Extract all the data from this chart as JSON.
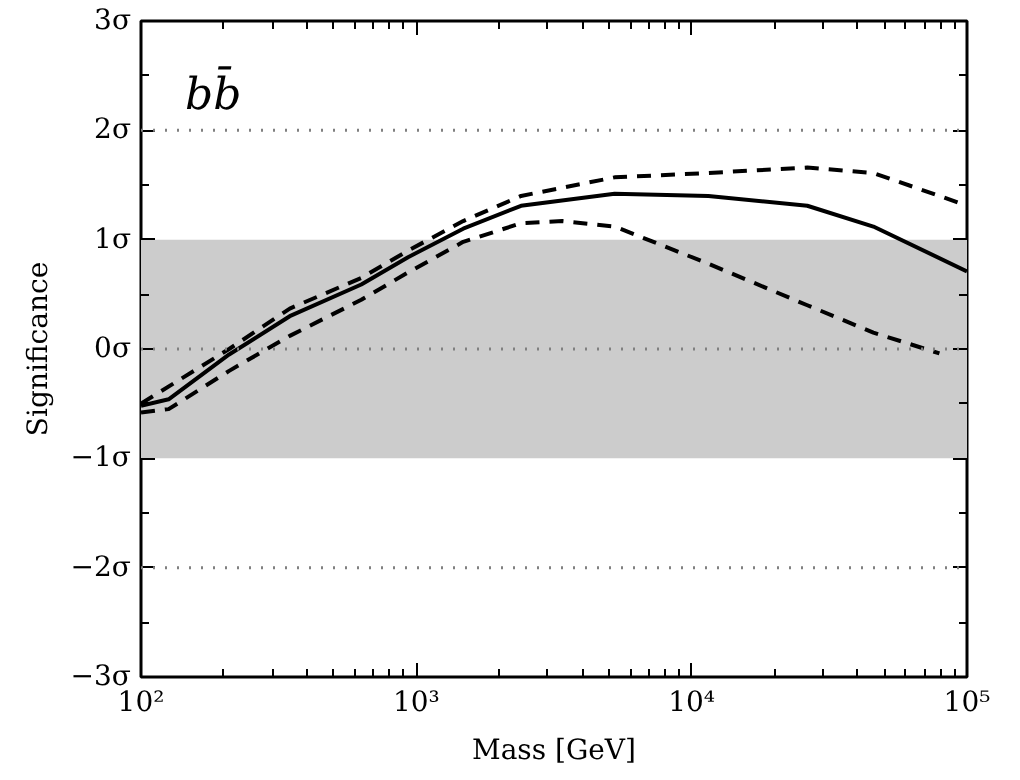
{
  "chart_data": {
    "type": "line",
    "xlabel": "Mass [GeV]",
    "ylabel": "Significance",
    "annotations": [
      "bb̄"
    ],
    "log": "x",
    "xlim": [
      100,
      100000
    ],
    "xticks": [
      {
        "value": 100,
        "label": "10²"
      },
      {
        "value": 1000,
        "label": "10³"
      },
      {
        "value": 10000,
        "label": "10⁴"
      },
      {
        "value": 100000,
        "label": "10⁵"
      }
    ],
    "ylim": [
      -3,
      3
    ],
    "yticks": [
      {
        "value": -3,
        "label": "−3σ"
      },
      {
        "value": -2,
        "label": "−2σ"
      },
      {
        "value": -1,
        "label": "−1σ"
      },
      {
        "value": 0,
        "label": "0σ"
      },
      {
        "value": 1,
        "label": "1σ"
      },
      {
        "value": 2,
        "label": "2σ"
      },
      {
        "value": 3,
        "label": "3σ"
      }
    ],
    "grid": false,
    "marker": "none",
    "bands": [
      {
        "axis": "y",
        "from": -1,
        "to": 1,
        "label": null,
        "color": "#cccccc"
      }
    ],
    "ref_lines": [
      {
        "axis": "y",
        "value": 2,
        "label": null,
        "color": "#808080",
        "line_style": "dotted"
      },
      {
        "axis": "y",
        "value": 0,
        "label": null,
        "color": "#808080",
        "line_style": "dotted"
      },
      {
        "axis": "y",
        "value": -2,
        "label": null,
        "color": "#808080",
        "line_style": "dotted"
      }
    ],
    "series": [
      {
        "color": "#000000",
        "line_style": "solid",
        "x": [
          100,
          126,
          209,
          347,
          631,
          933,
          1480,
          2400,
          5250,
          11500,
          26300,
          45700,
          100000
        ],
        "values": [
          -0.52,
          -0.46,
          -0.05,
          0.3,
          0.59,
          0.84,
          1.1,
          1.31,
          1.42,
          1.4,
          1.31,
          1.12,
          0.71
        ]
      },
      {
        "color": "#000000",
        "line_style": "dashed",
        "x": [
          100,
          209,
          347,
          631,
          933,
          1480,
          2400,
          5250,
          11500,
          26300,
          45700,
          79400,
          100000
        ],
        "values": [
          -0.5,
          0.0,
          0.37,
          0.65,
          0.9,
          1.17,
          1.4,
          1.57,
          1.61,
          1.66,
          1.61,
          1.4,
          1.31
        ]
      },
      {
        "color": "#000000",
        "line_style": "dashed",
        "x": [
          100,
          126,
          209,
          347,
          631,
          933,
          1480,
          2400,
          3390,
          5250,
          11500,
          26300,
          45700,
          79400
        ],
        "values": [
          -0.58,
          -0.55,
          -0.2,
          0.12,
          0.45,
          0.7,
          0.98,
          1.15,
          1.17,
          1.12,
          0.78,
          0.4,
          0.15,
          -0.04
        ]
      }
    ]
  }
}
